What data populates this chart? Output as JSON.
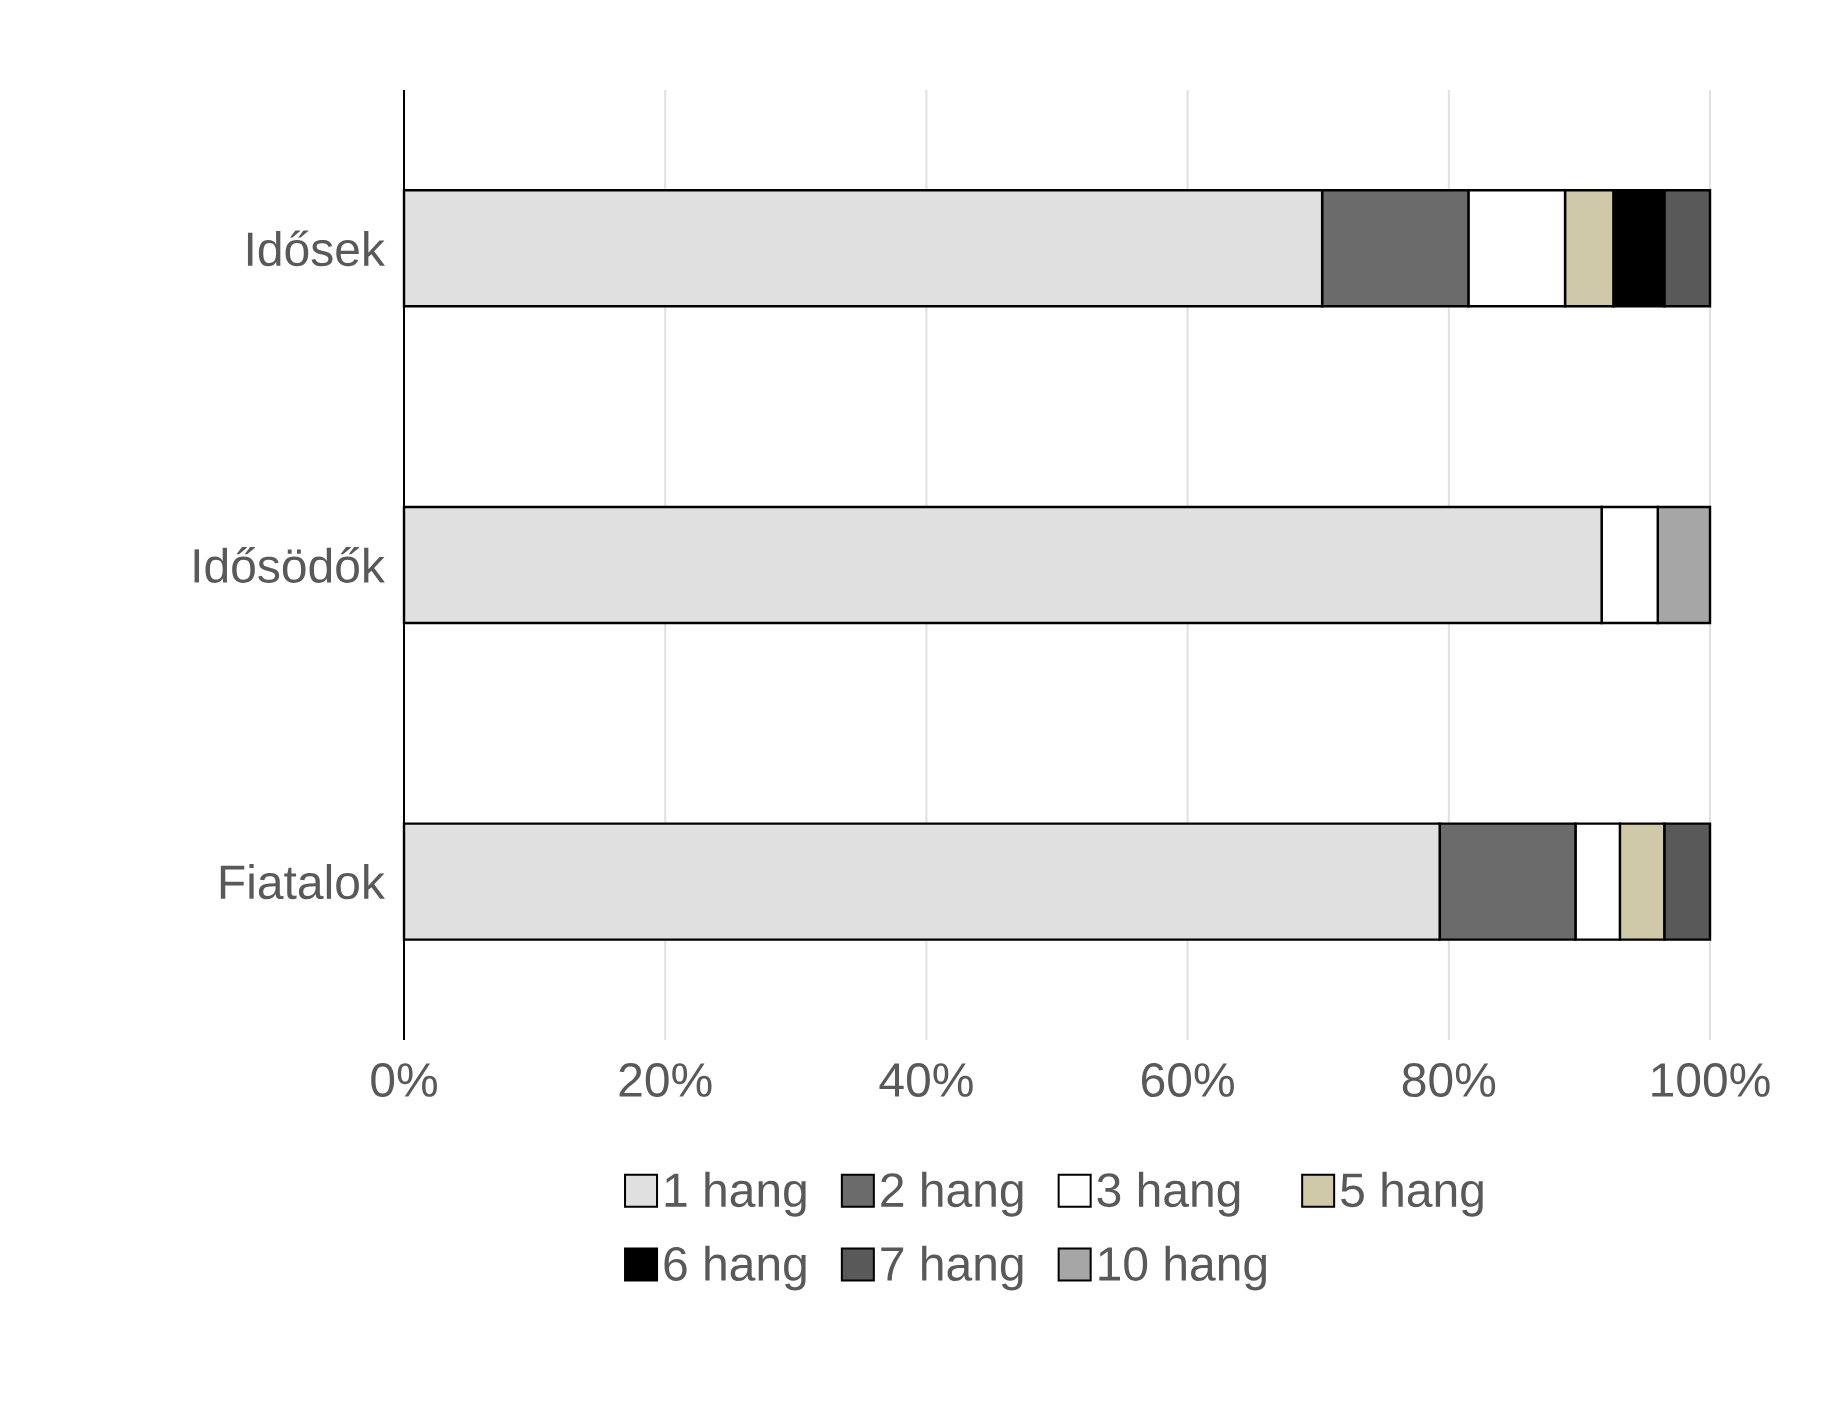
{
  "chart_data": {
    "type": "bar",
    "orientation": "horizontal",
    "stacked": true,
    "categories": [
      "Idősek",
      "Idősödők",
      "Fiatalok"
    ],
    "series": [
      {
        "name": "1 hang",
        "color": "#e0e0e0",
        "values": [
          70.3,
          91.7,
          79.3
        ]
      },
      {
        "name": "2 hang",
        "color": "#6b6b6b",
        "values": [
          11.2,
          0,
          10.4
        ]
      },
      {
        "name": "3 hang",
        "color": "#ffffff",
        "values": [
          7.4,
          4.3,
          3.4
        ]
      },
      {
        "name": "5 hang",
        "color": "#cfc9a8",
        "values": [
          3.7,
          0,
          3.4
        ]
      },
      {
        "name": "6 hang",
        "color": "#000000",
        "values": [
          3.9,
          0,
          0
        ]
      },
      {
        "name": "7 hang",
        "color": "#595959",
        "values": [
          3.5,
          0,
          3.5
        ]
      },
      {
        "name": "10 hang",
        "color": "#a6a6a6",
        "values": [
          0,
          4.0,
          0
        ]
      }
    ],
    "xlim": [
      0,
      100
    ],
    "xticks": [
      {
        "value": 0,
        "label": "0%"
      },
      {
        "value": 20,
        "label": "20%"
      },
      {
        "value": 40,
        "label": "40%"
      },
      {
        "value": 60,
        "label": "60%"
      },
      {
        "value": 80,
        "label": "80%"
      },
      {
        "value": 100,
        "label": "100%"
      }
    ],
    "grid": "x",
    "legend": "bottom"
  }
}
